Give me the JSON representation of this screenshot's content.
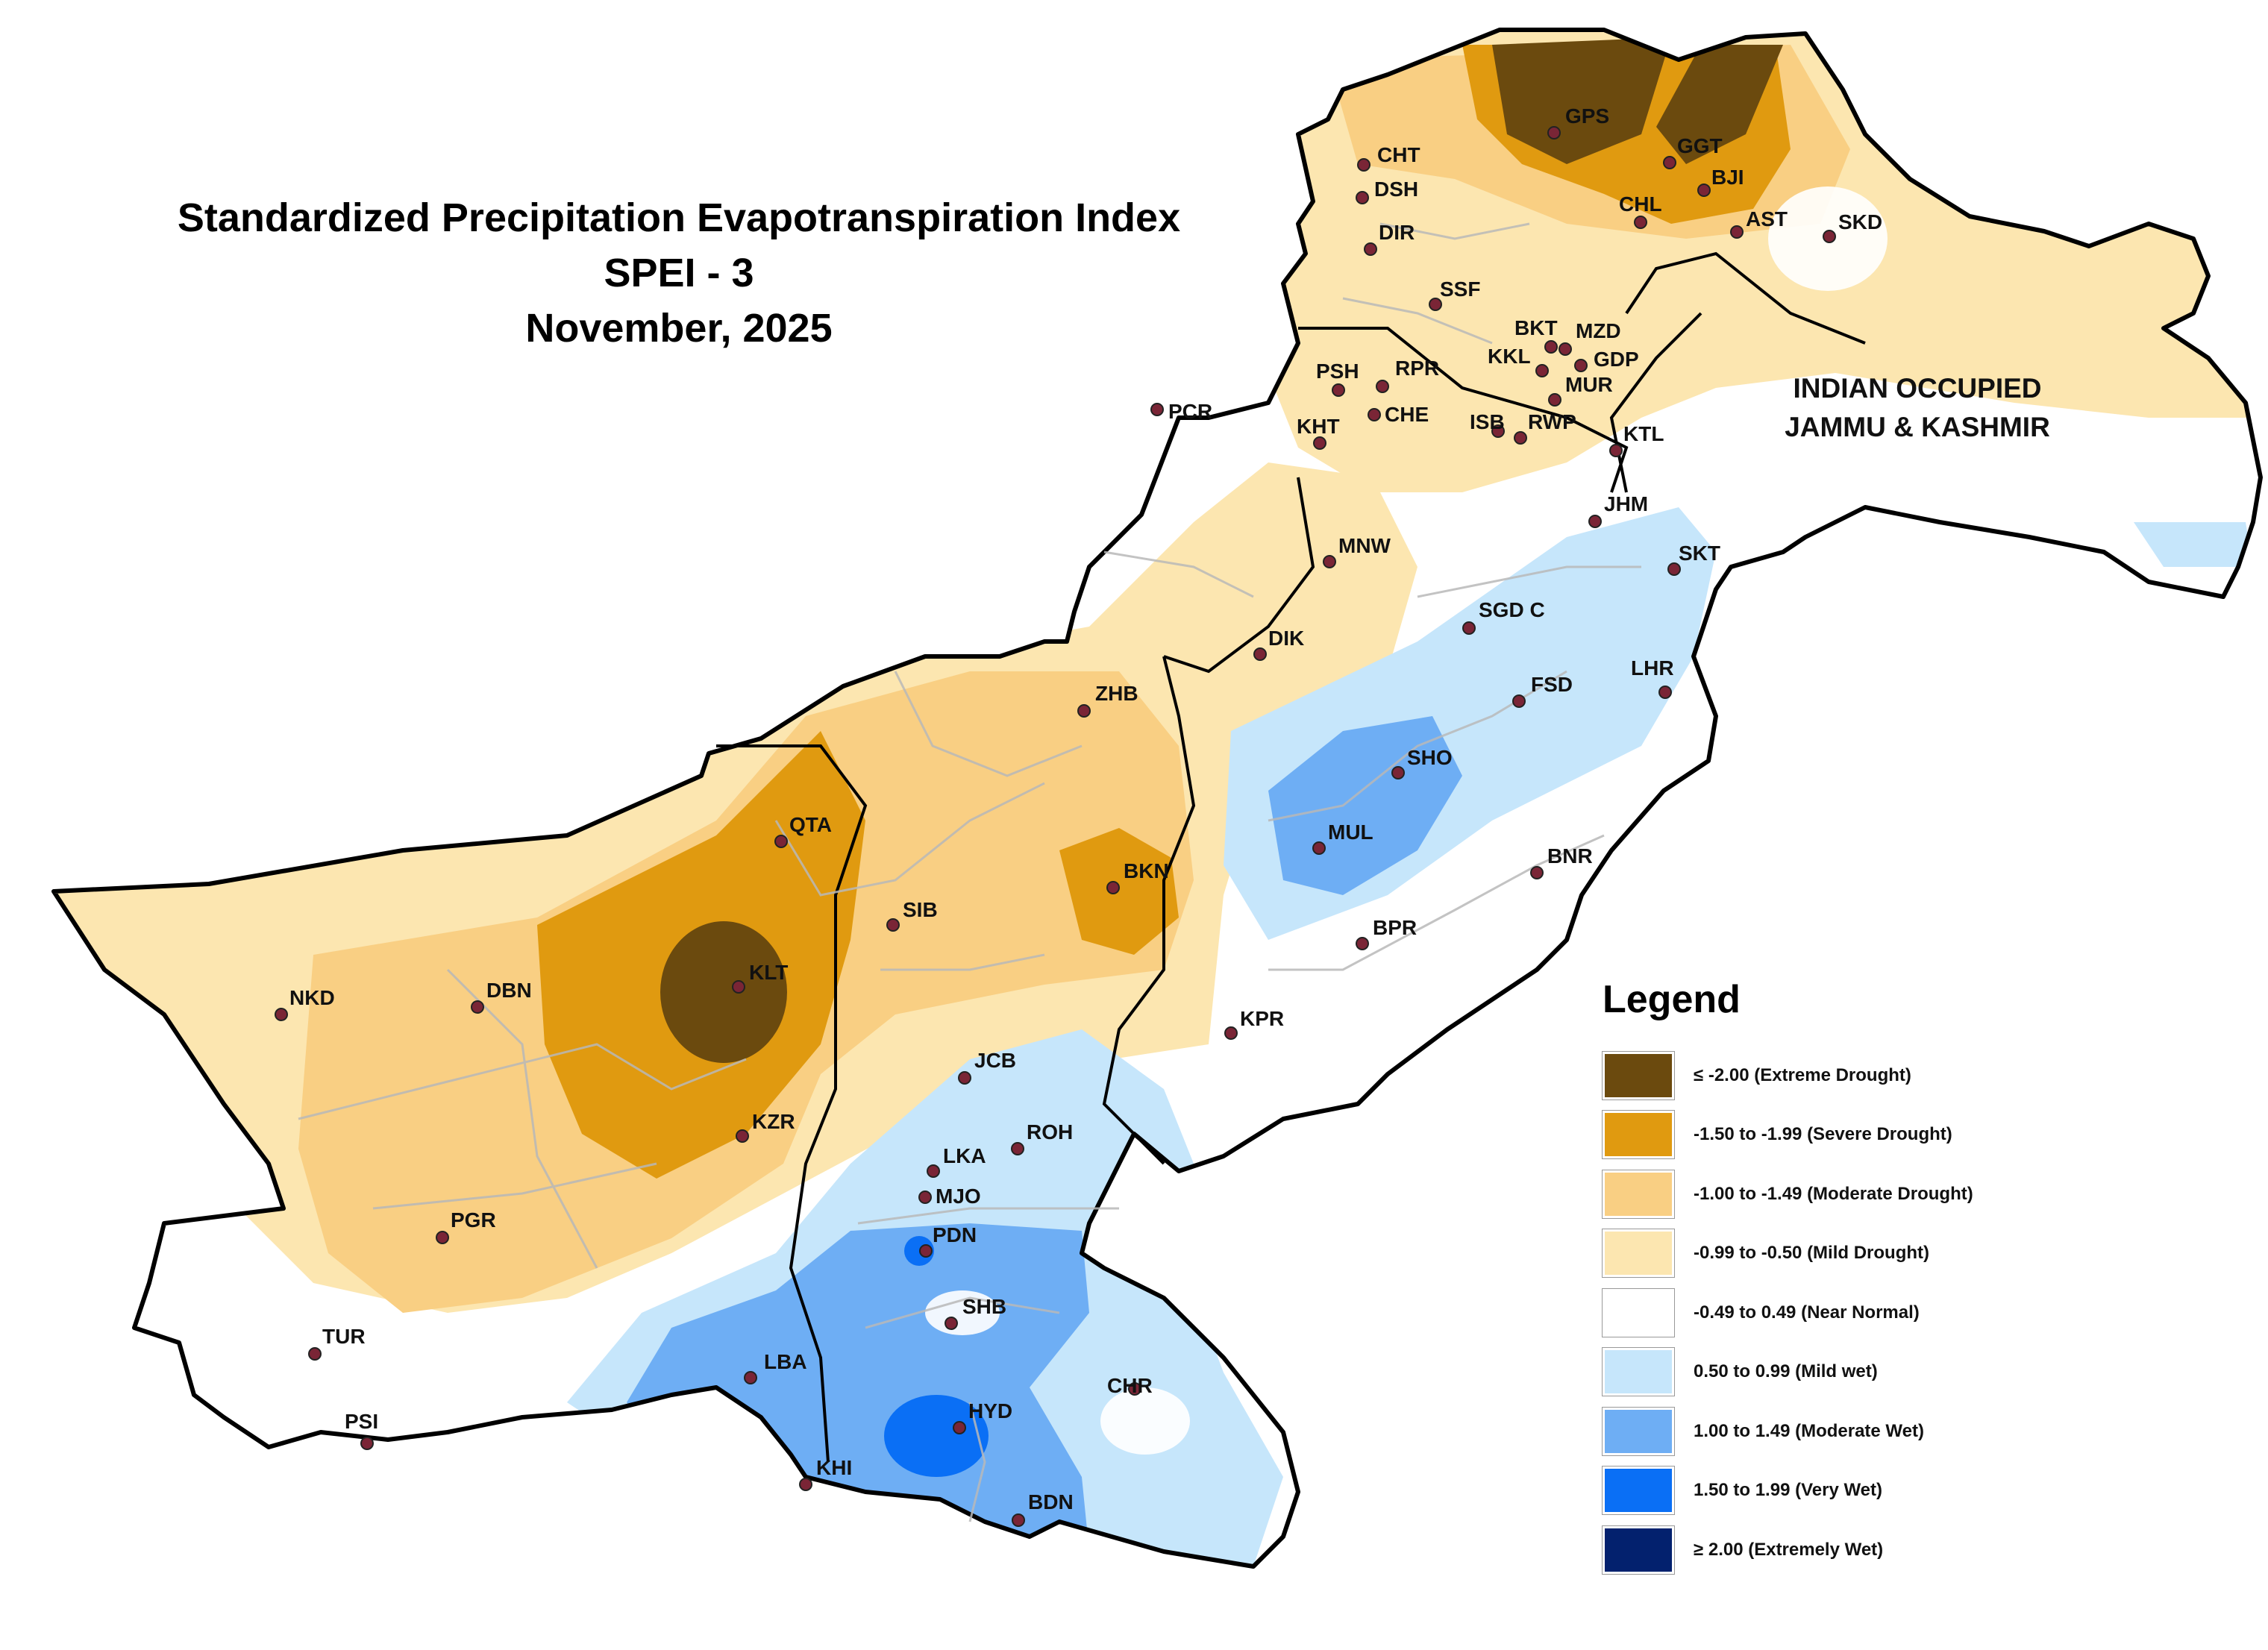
{
  "title": {
    "line1": "Standardized Precipitation Evapotranspiration Index",
    "line2": "SPEI - 3",
    "line3": "November, 2025"
  },
  "region_label": {
    "line1": "INDIAN OCCUPIED",
    "line2": "JAMMU & KASHMIR"
  },
  "legend": {
    "title": "Legend",
    "items": [
      {
        "label": "≤ -2.00  (Extreme Drought)",
        "color": "#6b4a0e"
      },
      {
        "label": "-1.50 to -1.99  (Severe Drought)",
        "color": "#e09a10"
      },
      {
        "label": "-1.00 to -1.49  (Moderate Drought)",
        "color": "#f9cf83"
      },
      {
        "label": "-0.99 to -0.50  (Mild Drought)",
        "color": "#fce6b0"
      },
      {
        "label": "-0.49 to 0.49  (Near Normal)",
        "color": "#ffffff"
      },
      {
        "label": "0.50 to 0.99  (Mild wet)",
        "color": "#c6e6fb"
      },
      {
        "label": "1.00 to 1.49  (Moderate Wet)",
        "color": "#6eaef4"
      },
      {
        "label": "1.50 to 1.99  (Very Wet)",
        "color": "#0a6ff5"
      },
      {
        "label": "≥ 2.00   (Extremely Wet)",
        "color": "#03216e"
      }
    ]
  },
  "stations": [
    {
      "code": "GPS"
    },
    {
      "code": "CHT"
    },
    {
      "code": "DSH"
    },
    {
      "code": "GGT"
    },
    {
      "code": "BJI"
    },
    {
      "code": "CHL"
    },
    {
      "code": "AST"
    },
    {
      "code": "SKD"
    },
    {
      "code": "DIR"
    },
    {
      "code": "SSF"
    },
    {
      "code": "BKT"
    },
    {
      "code": "MZD"
    },
    {
      "code": "KKL"
    },
    {
      "code": "GDP"
    },
    {
      "code": "MUR"
    },
    {
      "code": "PSH"
    },
    {
      "code": "RPR"
    },
    {
      "code": "PCR"
    },
    {
      "code": "CHE"
    },
    {
      "code": "KHT"
    },
    {
      "code": "ISB"
    },
    {
      "code": "RWP"
    },
    {
      "code": "KTL"
    },
    {
      "code": "JHM"
    },
    {
      "code": "SKT"
    },
    {
      "code": "MNW"
    },
    {
      "code": "SGD C"
    },
    {
      "code": "DIK"
    },
    {
      "code": "LHR"
    },
    {
      "code": "FSD"
    },
    {
      "code": "ZHB"
    },
    {
      "code": "SHO"
    },
    {
      "code": "QTA"
    },
    {
      "code": "MUL"
    },
    {
      "code": "BKN"
    },
    {
      "code": "BNR"
    },
    {
      "code": "SIB"
    },
    {
      "code": "BPR"
    },
    {
      "code": "KLT"
    },
    {
      "code": "NKD"
    },
    {
      "code": "DBN"
    },
    {
      "code": "KPR"
    },
    {
      "code": "JCB"
    },
    {
      "code": "KZR"
    },
    {
      "code": "ROH"
    },
    {
      "code": "LKA"
    },
    {
      "code": "MJO"
    },
    {
      "code": "PGR"
    },
    {
      "code": "PDN"
    },
    {
      "code": "SHB"
    },
    {
      "code": "TUR"
    },
    {
      "code": "LBA"
    },
    {
      "code": "CHR"
    },
    {
      "code": "HYD"
    },
    {
      "code": "PSI"
    },
    {
      "code": "KHI"
    },
    {
      "code": "BDN"
    }
  ]
}
